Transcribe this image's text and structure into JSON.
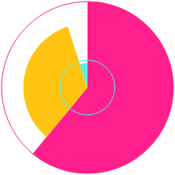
{
  "chart_data": {
    "type": "pie",
    "values": [
      61,
      34,
      5
    ],
    "colors": [
      "#ff1f8c",
      "#ffc411",
      "#4ff3ea"
    ]
  }
}
